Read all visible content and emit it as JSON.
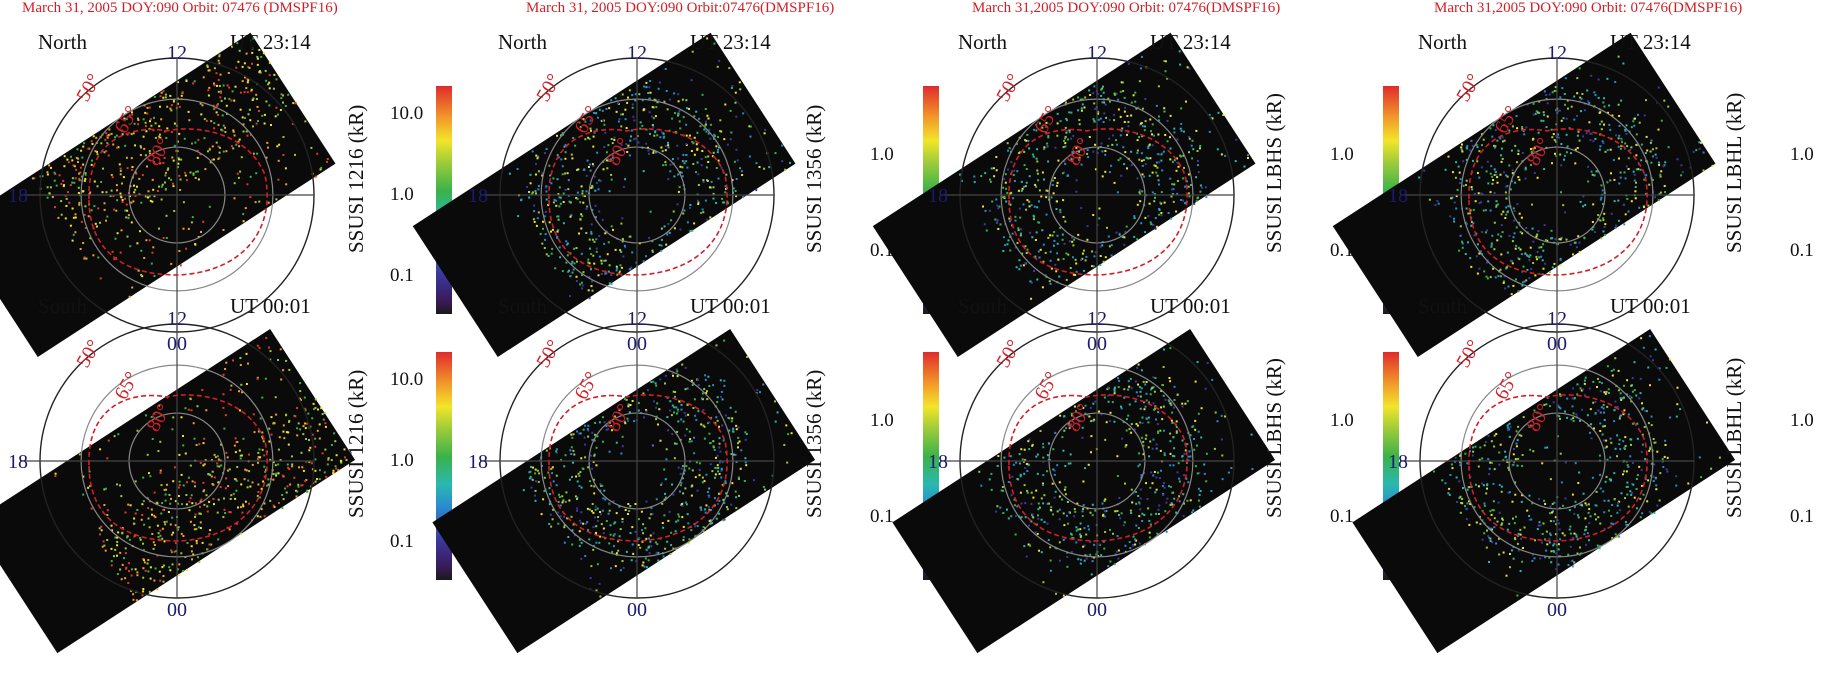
{
  "columns": [
    {
      "header": "March 31, 2005 DOY:090 Orbit: 07476 (DMSPF16)",
      "ylabel": "SSUSI 1216 (kR)",
      "ticks": [
        "10.0",
        "1.0",
        "0.1"
      ]
    },
    {
      "header": "March 31, 2005 DOY:090 Orbit:07476(DMSPF16)",
      "ylabel": "SSUSI 1356 (kR)",
      "ticks": [
        "1.0",
        "0.1"
      ]
    },
    {
      "header": "March 31,2005 DOY:090 Orbit: 07476(DMSPF16)",
      "ylabel": "SSUSI LBHS (kR)",
      "ticks": [
        "1.0",
        "0.1"
      ]
    },
    {
      "header": "March 31,2005 DOY:090 Orbit: 07476(DMSPF16)",
      "ylabel": "SSUSI LBHL  (kR)",
      "ticks": [
        "1.0",
        "0.1"
      ]
    }
  ],
  "rows": [
    {
      "hemisphere": "North",
      "time": "UT 23:14"
    },
    {
      "hemisphere": "South",
      "time": "UT 00:01"
    }
  ],
  "clock_labels": {
    "top": "12",
    "left": "18",
    "bottom": "00"
  },
  "latitude_labels": [
    "50°",
    "65°",
    "80°"
  ],
  "colors": {
    "header": "#d21f26",
    "oval": "#d21f26",
    "grid": "#888888",
    "clock": "#1a1a70",
    "swath": "#0a0a0a"
  }
}
